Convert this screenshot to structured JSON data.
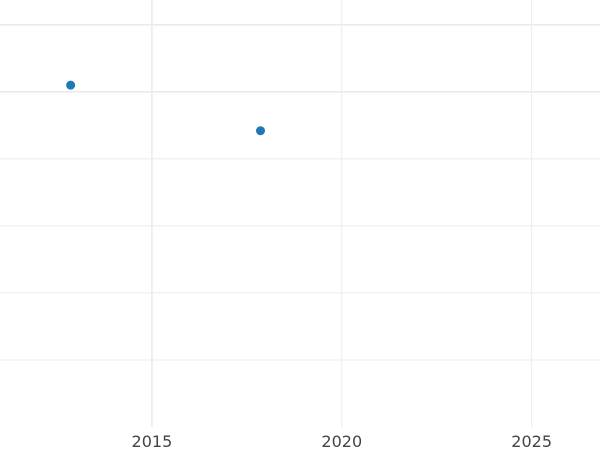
{
  "chart_data": {
    "type": "scatter",
    "title": "",
    "xlabel": "",
    "ylabel": "",
    "xlim": [
      2011,
      2026.8
    ],
    "ylim": [
      -1.0,
      5.37
    ],
    "x_ticks": [
      2015,
      2020,
      2025
    ],
    "x_tick_labels": [
      "2015",
      "2020",
      "2025"
    ],
    "y_gridlines": [
      0,
      1,
      2,
      3,
      4,
      5
    ],
    "grid": true,
    "series": [
      {
        "x": [
          2012.86,
          2017.86
        ],
        "y": [
          4.1,
          3.42
        ],
        "color": "#1f77b4"
      }
    ],
    "colors": {
      "point": "#1f77b4",
      "grid": "#ebebeb",
      "tick_text": "#444444"
    }
  }
}
